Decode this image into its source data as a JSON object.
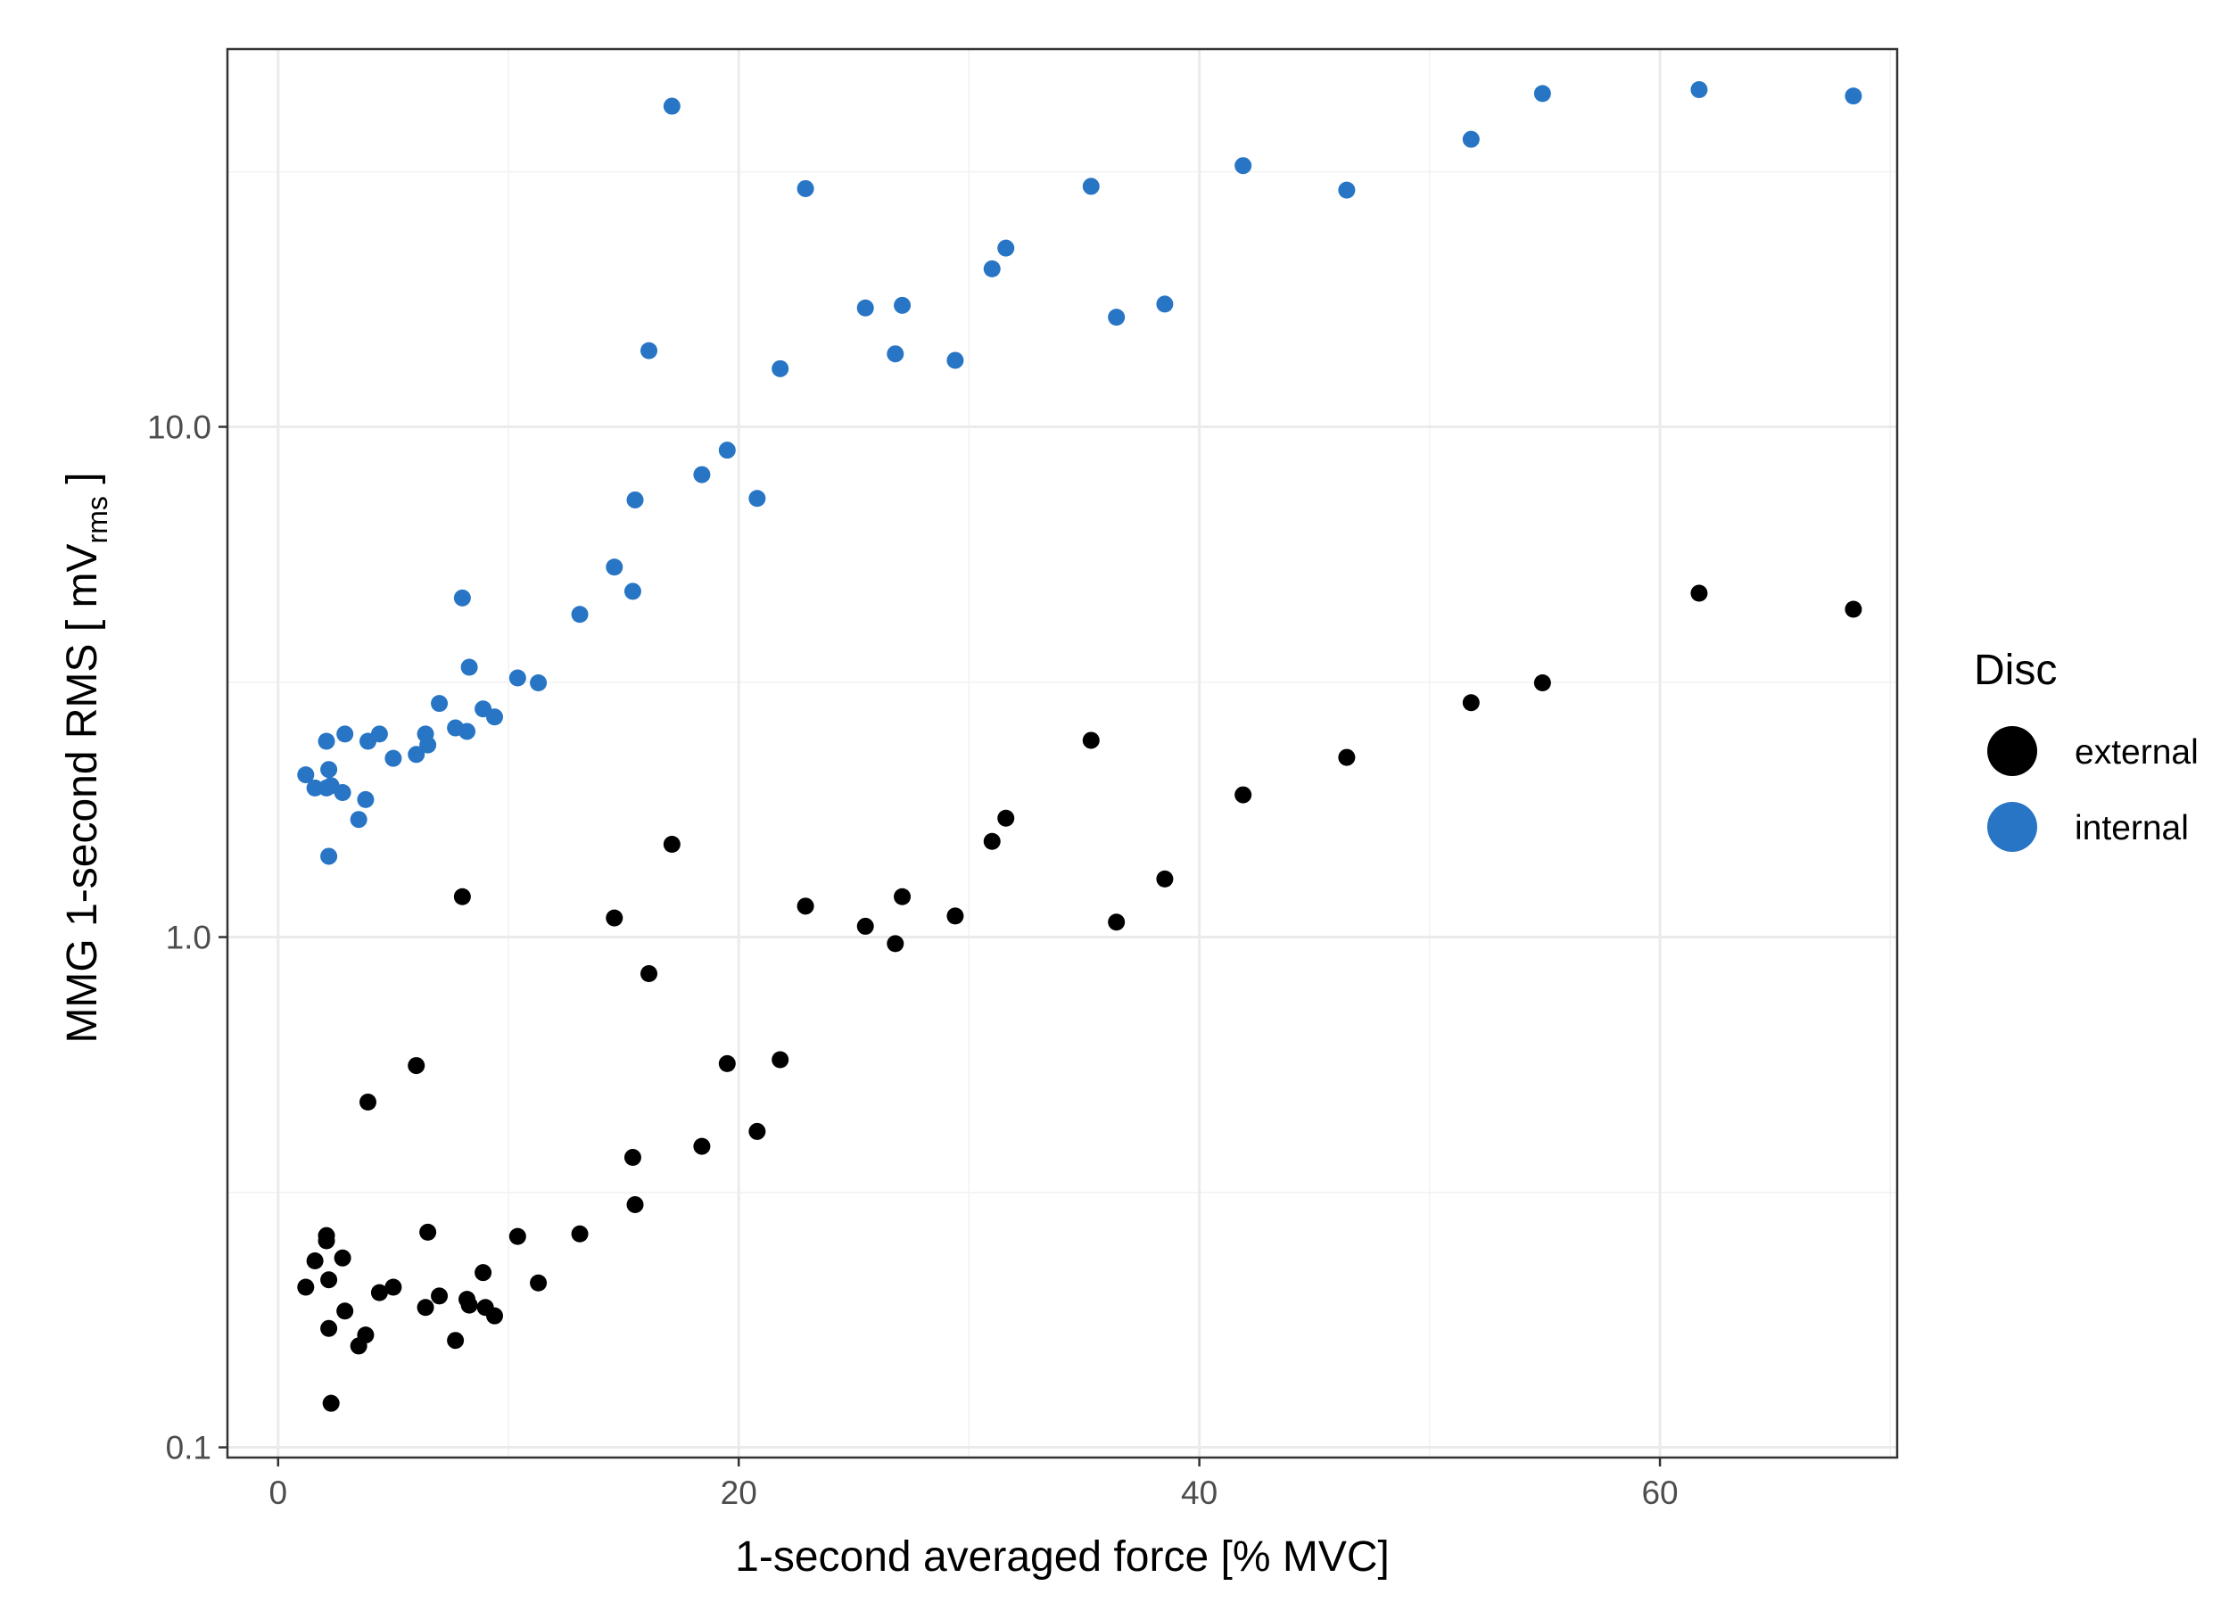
{
  "chart_data": {
    "type": "scatter",
    "title": "",
    "xlabel": "1-second averaged force [% MVC]",
    "ylabel": {
      "main": "MMG 1-second RMS [ mV",
      "subscript": "rms",
      "suffix": " ]"
    },
    "x_scale": "linear",
    "y_scale": "log10",
    "xlim": [
      -2.2,
      70.3
    ],
    "ylim": [
      0.0955,
      55
    ],
    "x_ticks": [
      0,
      20,
      40,
      60
    ],
    "x_tick_labels": [
      "0",
      "20",
      "40",
      "60"
    ],
    "x_minor_ticks": [
      10,
      30,
      50,
      70
    ],
    "y_ticks": [
      0.1,
      1.0,
      10.0
    ],
    "y_tick_labels": [
      "0.1",
      "1.0",
      "10.0"
    ],
    "y_minor_ticks": [
      0.316,
      3.16,
      31.6
    ],
    "grid": true,
    "legend": {
      "title": "Disc",
      "position": "right",
      "entries": [
        "external",
        "internal"
      ]
    },
    "series": [
      {
        "name": "external",
        "color": "#000000",
        "x": [
          1.2,
          1.6,
          2.1,
          2.1,
          2.2,
          2.2,
          2.3,
          2.8,
          2.9,
          3.5,
          3.8,
          3.9,
          4.4,
          5.0,
          6.0,
          6.4,
          6.5,
          7.0,
          7.7,
          8.0,
          8.2,
          8.3,
          8.9,
          9.0,
          9.4,
          10.4,
          11.3,
          13.1,
          14.6,
          15.4,
          15.5,
          16.1,
          17.1,
          18.4,
          19.5,
          20.8,
          21.8,
          22.9,
          25.5,
          26.8,
          27.1,
          29.4,
          31.0,
          31.6,
          35.3,
          36.4,
          38.5,
          41.9,
          46.4,
          51.8,
          54.9,
          61.7,
          68.4
        ],
        "y": [
          0.206,
          0.232,
          0.254,
          0.26,
          0.213,
          0.171,
          0.122,
          0.235,
          0.185,
          0.158,
          0.166,
          0.475,
          0.201,
          0.206,
          0.56,
          0.188,
          0.264,
          0.198,
          0.162,
          1.2,
          0.195,
          0.19,
          0.22,
          0.188,
          0.181,
          0.259,
          0.21,
          0.262,
          1.09,
          0.37,
          0.299,
          0.848,
          1.52,
          0.389,
          0.565,
          0.416,
          0.575,
          1.15,
          1.05,
          0.971,
          1.2,
          1.1,
          1.54,
          1.71,
          2.43,
          1.07,
          1.3,
          1.9,
          2.25,
          2.88,
          3.15,
          4.72,
          4.39
        ]
      },
      {
        "name": "internal",
        "color": "#2775c4",
        "x": [
          1.2,
          1.6,
          2.1,
          2.1,
          2.2,
          2.2,
          2.3,
          2.8,
          2.9,
          3.5,
          3.8,
          3.9,
          4.4,
          5.0,
          6.0,
          6.4,
          6.5,
          7.0,
          7.7,
          8.0,
          8.2,
          8.3,
          8.9,
          9.4,
          10.4,
          11.3,
          13.1,
          14.6,
          15.4,
          15.5,
          16.1,
          17.1,
          18.4,
          19.5,
          20.8,
          21.8,
          22.9,
          25.5,
          26.8,
          27.1,
          29.4,
          31.0,
          31.6,
          35.3,
          36.4,
          38.5,
          41.9,
          46.4,
          51.8,
          54.9,
          61.7,
          68.4
        ],
        "y": [
          2.08,
          1.96,
          2.42,
          1.96,
          2.13,
          1.44,
          1.98,
          1.92,
          2.5,
          1.7,
          1.86,
          2.42,
          2.5,
          2.24,
          2.28,
          2.5,
          2.38,
          2.87,
          2.57,
          4.62,
          2.53,
          3.38,
          2.8,
          2.7,
          3.22,
          3.15,
          4.29,
          5.31,
          4.76,
          7.19,
          14.1,
          42.5,
          8.06,
          9.0,
          7.24,
          13.0,
          29.3,
          17.1,
          13.9,
          17.3,
          13.5,
          20.4,
          22.4,
          29.6,
          16.4,
          17.4,
          32.5,
          29.1,
          36.6,
          45.0,
          45.8,
          44.5
        ]
      }
    ]
  }
}
